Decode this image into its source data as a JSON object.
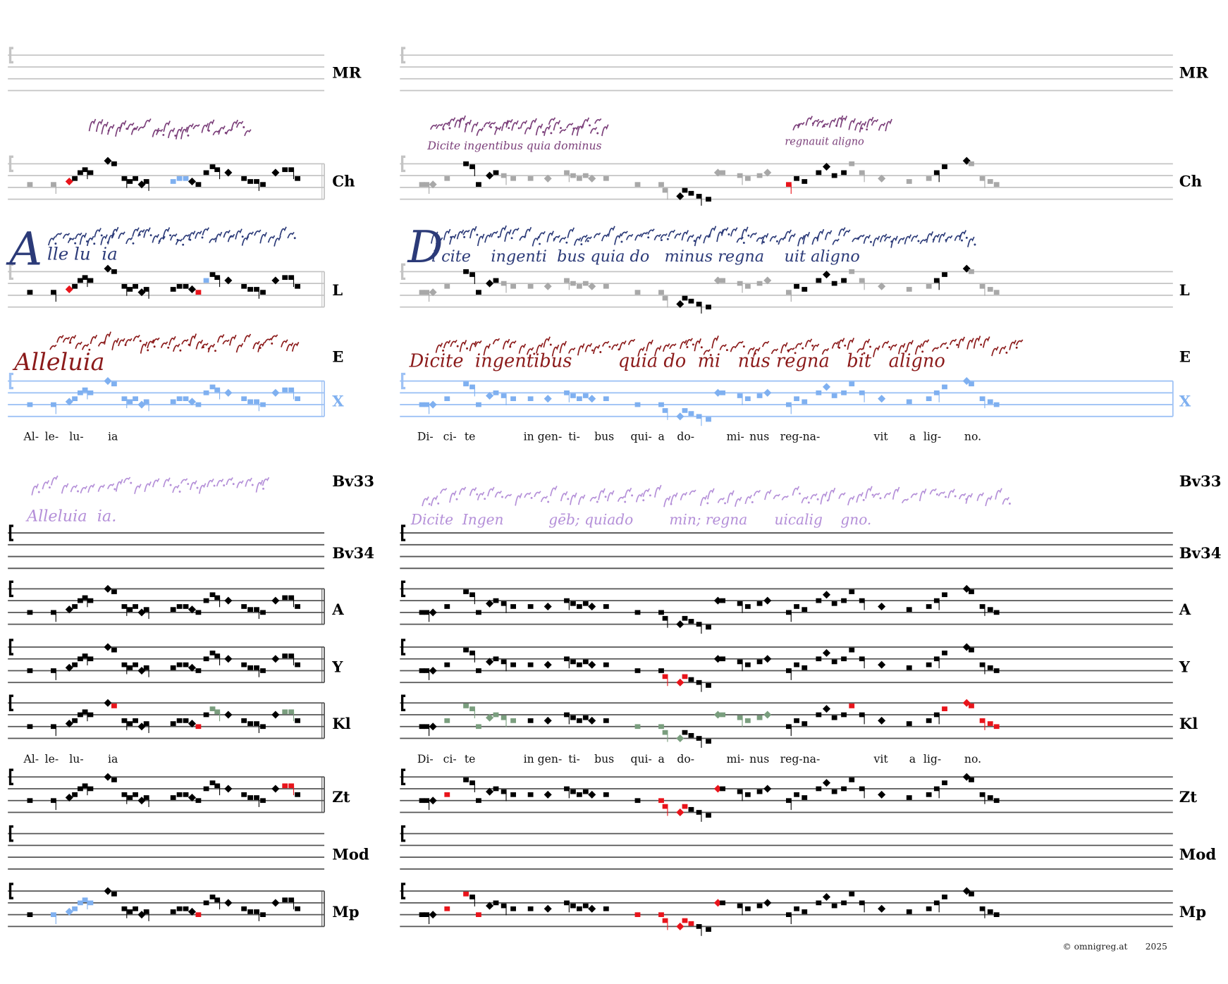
{
  "rows": [
    {
      "id": "mr",
      "label": "MR"
    },
    {
      "id": "ch",
      "label": "Ch"
    },
    {
      "id": "l",
      "label": "L"
    },
    {
      "id": "e",
      "label": "E"
    },
    {
      "id": "x",
      "label": "X"
    },
    {
      "id": "bv33",
      "label": "Bv33"
    },
    {
      "id": "bv34",
      "label": "Bv34"
    },
    {
      "id": "a",
      "label": "A"
    },
    {
      "id": "y",
      "label": "Y"
    },
    {
      "id": "kl",
      "label": "Kl"
    },
    {
      "id": "zt",
      "label": "Zt"
    },
    {
      "id": "mod",
      "label": "Mod"
    },
    {
      "id": "mp",
      "label": "Mp"
    }
  ],
  "lyrics": {
    "left": [
      "Al-",
      "le-",
      "lu-",
      "ia"
    ],
    "right": [
      "Di-",
      "ci-",
      "te",
      "in",
      "gen-",
      "ti-",
      "bus",
      "qui-",
      "a",
      "do-",
      "mi-",
      "nus",
      "reg-na-",
      "vit",
      "a",
      "lig-",
      "no."
    ]
  },
  "manuscripts": {
    "ch_right_1": "Dicite ingentibus quia dominus",
    "ch_right_2": "regnauit aligno",
    "l_left_initial": "A",
    "l_left_text": "lle lu  ia",
    "l_right_initial": "D",
    "l_right_text": "i cite    ingenti  bus quia do   minus regna    uit aligno",
    "e_left_text": "Alleluia",
    "e_right_text": "Dicite  ingentibus        quia do  mi   nus regna   bit   aligno",
    "bv33_left_text": "Alleluia  ia.",
    "bv33_right_text": "Dicite  Ingen          gēb; quiado        min; regna      uicalig    gno."
  },
  "colors": {
    "black": "#000000",
    "gray": "#a8a8a8",
    "red": "#e8141b",
    "blue": "#7fb0f0",
    "green": "#7a9e7e",
    "purple": "#7b3f7a",
    "navy": "#2b3a78",
    "darkred": "#8b1a1a",
    "lavender": "#b48fd8"
  },
  "footer": {
    "copyright": "© omnigreg.at",
    "year": "2025"
  }
}
